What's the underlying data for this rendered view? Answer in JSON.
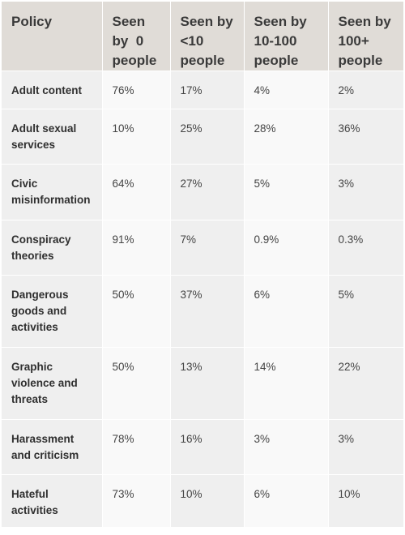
{
  "chart_data": {
    "type": "table",
    "columns": [
      "Policy",
      "Seen by  0 people",
      "Seen by <10 people",
      "Seen by 10-100 people",
      "Seen by 100+ people"
    ],
    "rows": [
      [
        "Adult content",
        "76%",
        "17%",
        "4%",
        "2%"
      ],
      [
        "Adult sexual services",
        "10%",
        "25%",
        "28%",
        "36%"
      ],
      [
        "Civic misinformation",
        "64%",
        "27%",
        "5%",
        "3%"
      ],
      [
        "Conspiracy theories",
        "91%",
        "7%",
        "0.9%",
        "0.3%"
      ],
      [
        "Dangerous goods and activities",
        "50%",
        "37%",
        "6%",
        "5%"
      ],
      [
        "Graphic violence and threats",
        "50%",
        "13%",
        "14%",
        "22%"
      ],
      [
        "Harassment and criticism",
        "78%",
        "16%",
        "3%",
        "3%"
      ],
      [
        "Hateful activities",
        "73%",
        "10%",
        "6%",
        "10%"
      ]
    ]
  }
}
